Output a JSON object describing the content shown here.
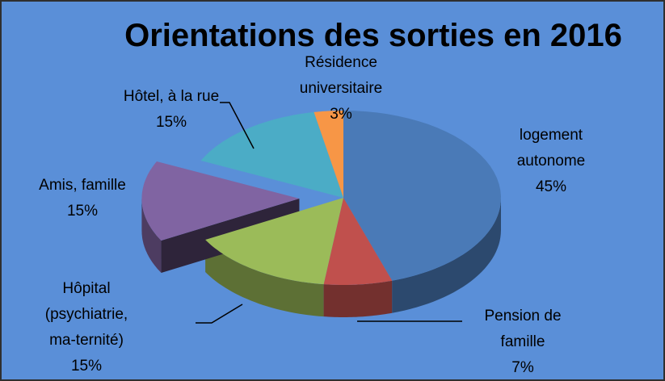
{
  "chart_data": {
    "type": "pie",
    "title": "Orientations des sorties en 2016",
    "categories": [
      "logement autonome",
      "Pension de famille",
      "Hôpital (psychiatrie, ma-ternité)",
      "Amis, famille",
      "Hôtel, à la rue",
      "Résidence universitaire"
    ],
    "values": [
      45,
      7,
      15,
      15,
      15,
      3
    ],
    "value_labels": [
      "45%",
      "7%",
      "15%",
      "15%",
      "15%",
      "3%"
    ],
    "colors": [
      "#4a7ab7",
      "#c0504d",
      "#9bbb59",
      "#8064a2",
      "#4bacc6",
      "#f79646"
    ],
    "explode": [
      false,
      false,
      false,
      true,
      false,
      false
    ]
  }
}
